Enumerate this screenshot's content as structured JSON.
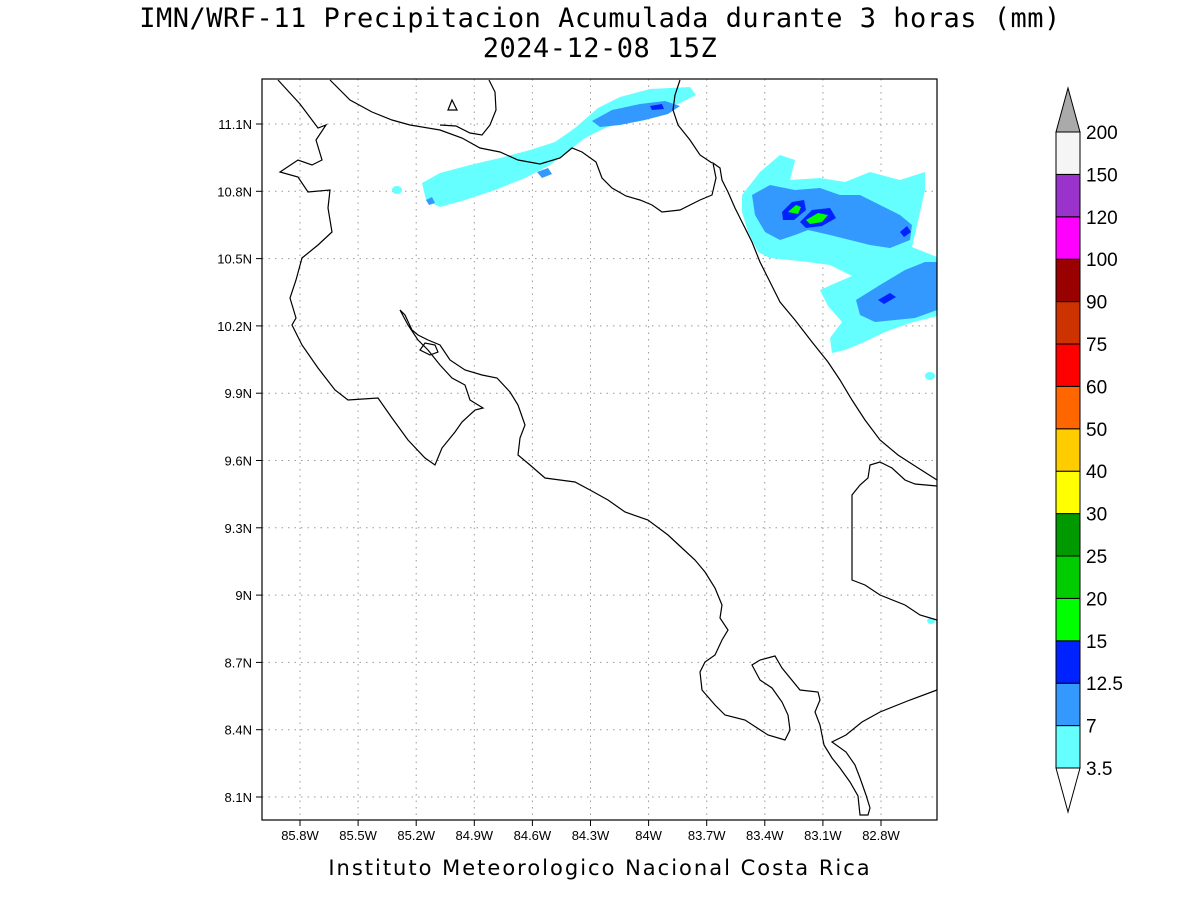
{
  "title": {
    "line1": "IMN/WRF-11 Precipitacion Acumulada durante 3 horas (mm)",
    "line2": "2024-12-08 15Z"
  },
  "footer": "Instituto Meteorologico Nacional Costa Rica",
  "map": {
    "lon_ticks": [
      "85.8W",
      "85.5W",
      "85.2W",
      "84.9W",
      "84.6W",
      "84.3W",
      "84W",
      "83.7W",
      "83.4W",
      "83.1W",
      "82.8W"
    ],
    "lat_ticks": [
      "11.1N",
      "10.8N",
      "10.5N",
      "10.2N",
      "9.9N",
      "9.6N",
      "9.3N",
      "9N",
      "8.7N",
      "8.4N",
      "8.1N"
    ],
    "grid": "dotted"
  },
  "colorbar": {
    "levels": [
      "3.5",
      "7",
      "12.5",
      "15",
      "20",
      "25",
      "30",
      "40",
      "50",
      "60",
      "75",
      "90",
      "100",
      "120",
      "150",
      "200"
    ],
    "colors": [
      "#66ffff",
      "#3399ff",
      "#0022ff",
      "#00ff00",
      "#00cc00",
      "#009900",
      "#ffff00",
      "#ffcc00",
      "#ff6600",
      "#ff0000",
      "#cc3300",
      "#990000",
      "#ff00ff",
      "#9933cc",
      "#f5f5f5"
    ],
    "low_end_color": "#ffffff",
    "high_end_color": "#aaaaaa"
  }
}
